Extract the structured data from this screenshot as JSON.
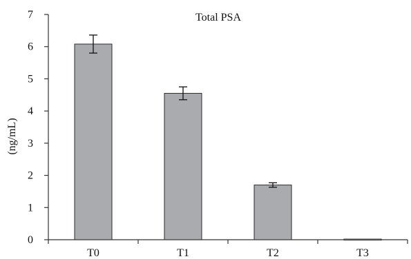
{
  "chart_data": {
    "type": "bar",
    "title": "Total PSA",
    "xlabel": "",
    "ylabel": "(ng/mL)",
    "categories": [
      "T0",
      "T1",
      "T2",
      "T3"
    ],
    "values": [
      6.08,
      4.55,
      1.7,
      0.02
    ],
    "error": [
      0.28,
      0.2,
      0.07,
      0.0
    ],
    "ylim": [
      0,
      7
    ],
    "yticks": [
      0,
      1,
      2,
      3,
      4,
      5,
      6,
      7
    ],
    "ytick_labels": [
      "0",
      "1",
      "2",
      "3",
      "4",
      "5",
      "6",
      "7"
    ],
    "grid": false,
    "legend": "none"
  },
  "colors": {
    "bar_fill": "#a9abae",
    "bar_stroke": "#2a2a2a",
    "axis": "#333333",
    "text": "#111111"
  }
}
